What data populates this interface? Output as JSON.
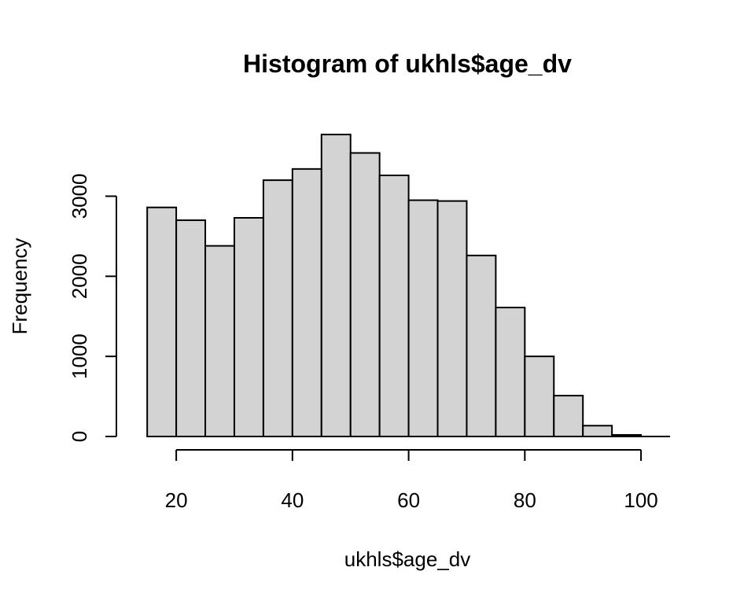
{
  "chart_data": {
    "type": "bar",
    "title": "Histogram of ukhls$age_dv",
    "xlabel": "ukhls$age_dv",
    "ylabel": "Frequency",
    "bins": [
      {
        "from": 15,
        "to": 20,
        "count": 2860
      },
      {
        "from": 20,
        "to": 25,
        "count": 2700
      },
      {
        "from": 25,
        "to": 30,
        "count": 2380
      },
      {
        "from": 30,
        "to": 35,
        "count": 2730
      },
      {
        "from": 35,
        "to": 40,
        "count": 3200
      },
      {
        "from": 40,
        "to": 45,
        "count": 3340
      },
      {
        "from": 45,
        "to": 50,
        "count": 3770
      },
      {
        "from": 50,
        "to": 55,
        "count": 3540
      },
      {
        "from": 55,
        "to": 60,
        "count": 3260
      },
      {
        "from": 60,
        "to": 65,
        "count": 2950
      },
      {
        "from": 65,
        "to": 70,
        "count": 2940
      },
      {
        "from": 70,
        "to": 75,
        "count": 2260
      },
      {
        "from": 75,
        "to": 80,
        "count": 1610
      },
      {
        "from": 80,
        "to": 85,
        "count": 1000
      },
      {
        "from": 85,
        "to": 90,
        "count": 510
      },
      {
        "from": 90,
        "to": 95,
        "count": 135
      },
      {
        "from": 95,
        "to": 100,
        "count": 20
      }
    ],
    "xlim": [
      12,
      105
    ],
    "ylim": [
      0,
      3800
    ],
    "x_ticks": [
      20,
      40,
      60,
      80,
      100
    ],
    "x_tick_labels": [
      "20",
      "40",
      "60",
      "80",
      "100"
    ],
    "y_ticks": [
      0,
      1000,
      2000,
      3000
    ],
    "y_tick_labels": [
      "0",
      "1000",
      "2000",
      "3000"
    ],
    "grid": false,
    "colors": {
      "bar_fill": "#d3d3d3",
      "bar_stroke": "#000000",
      "axis": "#000000"
    }
  }
}
